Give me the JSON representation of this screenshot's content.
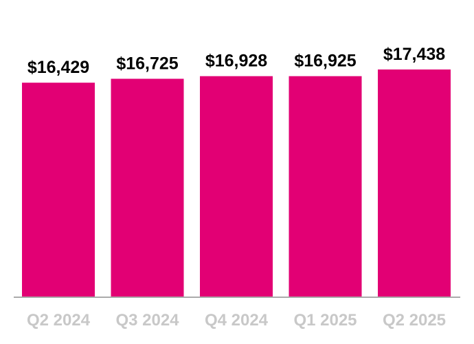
{
  "chart_data": {
    "type": "bar",
    "categories": [
      "Q2 2024",
      "Q3 2024",
      "Q4 2024",
      "Q1 2025",
      "Q2 2025"
    ],
    "values": [
      16429,
      16725,
      16928,
      16925,
      17438
    ],
    "data_labels": [
      "$16,429",
      "$16,725",
      "$16,928",
      "$16,925",
      "$17,438"
    ],
    "title": "",
    "xlabel": "",
    "ylabel": "",
    "ylim": [
      0,
      17438
    ],
    "grid": false,
    "legend": "none"
  },
  "colors": {
    "bar": "#e20074",
    "axis": "#aaaaaa",
    "tick_label": "#c8c8c8",
    "value_label": "#000000"
  }
}
